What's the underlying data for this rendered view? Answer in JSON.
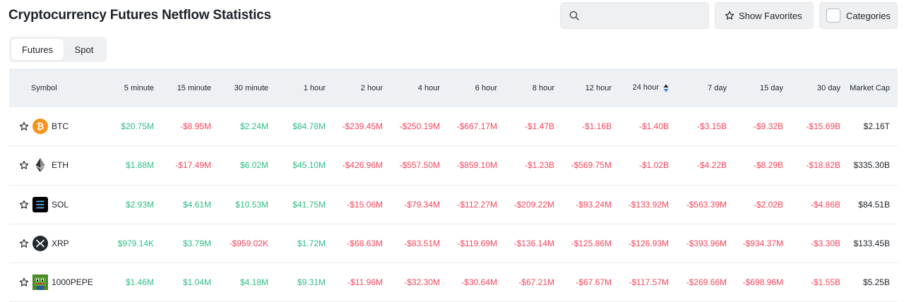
{
  "header": {
    "title": "Cryptocurrency Futures Netflow Statistics",
    "search_placeholder": "",
    "show_favorites_label": "Show Favorites",
    "categories_label": "Categories"
  },
  "tabs": [
    {
      "label": "Futures",
      "active": true
    },
    {
      "label": "Spot",
      "active": false
    }
  ],
  "colors": {
    "positive": "#2ebd85",
    "negative": "#f6465d"
  },
  "table": {
    "columns": [
      "Symbol",
      "5 minute",
      "15 minute",
      "30 minute",
      "1 hour",
      "2 hour",
      "4 hour",
      "6 hour",
      "8 hour",
      "12 hour",
      "24 hour",
      "7 day",
      "15 day",
      "30 day",
      "Market Cap"
    ],
    "sorted_column": "24 hour",
    "rows": [
      {
        "symbol": "BTC",
        "icon": "bitcoin-icon",
        "values": [
          "$20.75M",
          "-$8.95M",
          "$2.24M",
          "$84.78M",
          "-$239.45M",
          "-$250.19M",
          "-$667.17M",
          "-$1.47B",
          "-$1.16B",
          "-$1.40B",
          "-$3.15B",
          "-$9.32B",
          "-$15.69B"
        ],
        "market_cap": "$2.16T"
      },
      {
        "symbol": "ETH",
        "icon": "ethereum-icon",
        "values": [
          "$1.88M",
          "-$17.49M",
          "$6.02M",
          "$45.10M",
          "-$426.96M",
          "-$557.50M",
          "-$859.10M",
          "-$1.23B",
          "-$569.75M",
          "-$1.02B",
          "-$4.22B",
          "-$8.29B",
          "-$18.82B"
        ],
        "market_cap": "$335.30B"
      },
      {
        "symbol": "SOL",
        "icon": "solana-icon",
        "values": [
          "$2.93M",
          "$4.61M",
          "$10.53M",
          "$41.75M",
          "-$15.06M",
          "-$79.34M",
          "-$112.27M",
          "-$209.22M",
          "-$93.24M",
          "-$133.92M",
          "-$563.39M",
          "-$2.02B",
          "-$4.86B"
        ],
        "market_cap": "$84.51B"
      },
      {
        "symbol": "XRP",
        "icon": "xrp-icon",
        "values": [
          "$979.14K",
          "$3.79M",
          "-$959.02K",
          "$1.72M",
          "-$68.63M",
          "-$83.51M",
          "-$119.69M",
          "-$136.14M",
          "-$125.86M",
          "-$126.93M",
          "-$393.96M",
          "-$934.37M",
          "-$3.30B"
        ],
        "market_cap": "$133.45B"
      },
      {
        "symbol": "1000PEPE",
        "icon": "pepe-icon",
        "values": [
          "$1.46M",
          "$1.04M",
          "$4.18M",
          "$9.31M",
          "-$11.96M",
          "-$32.30M",
          "-$30.64M",
          "-$67.21M",
          "-$67.67M",
          "-$117.57M",
          "-$269.66M",
          "-$698.96M",
          "-$1.55B"
        ],
        "market_cap": "$5.25B"
      }
    ]
  }
}
